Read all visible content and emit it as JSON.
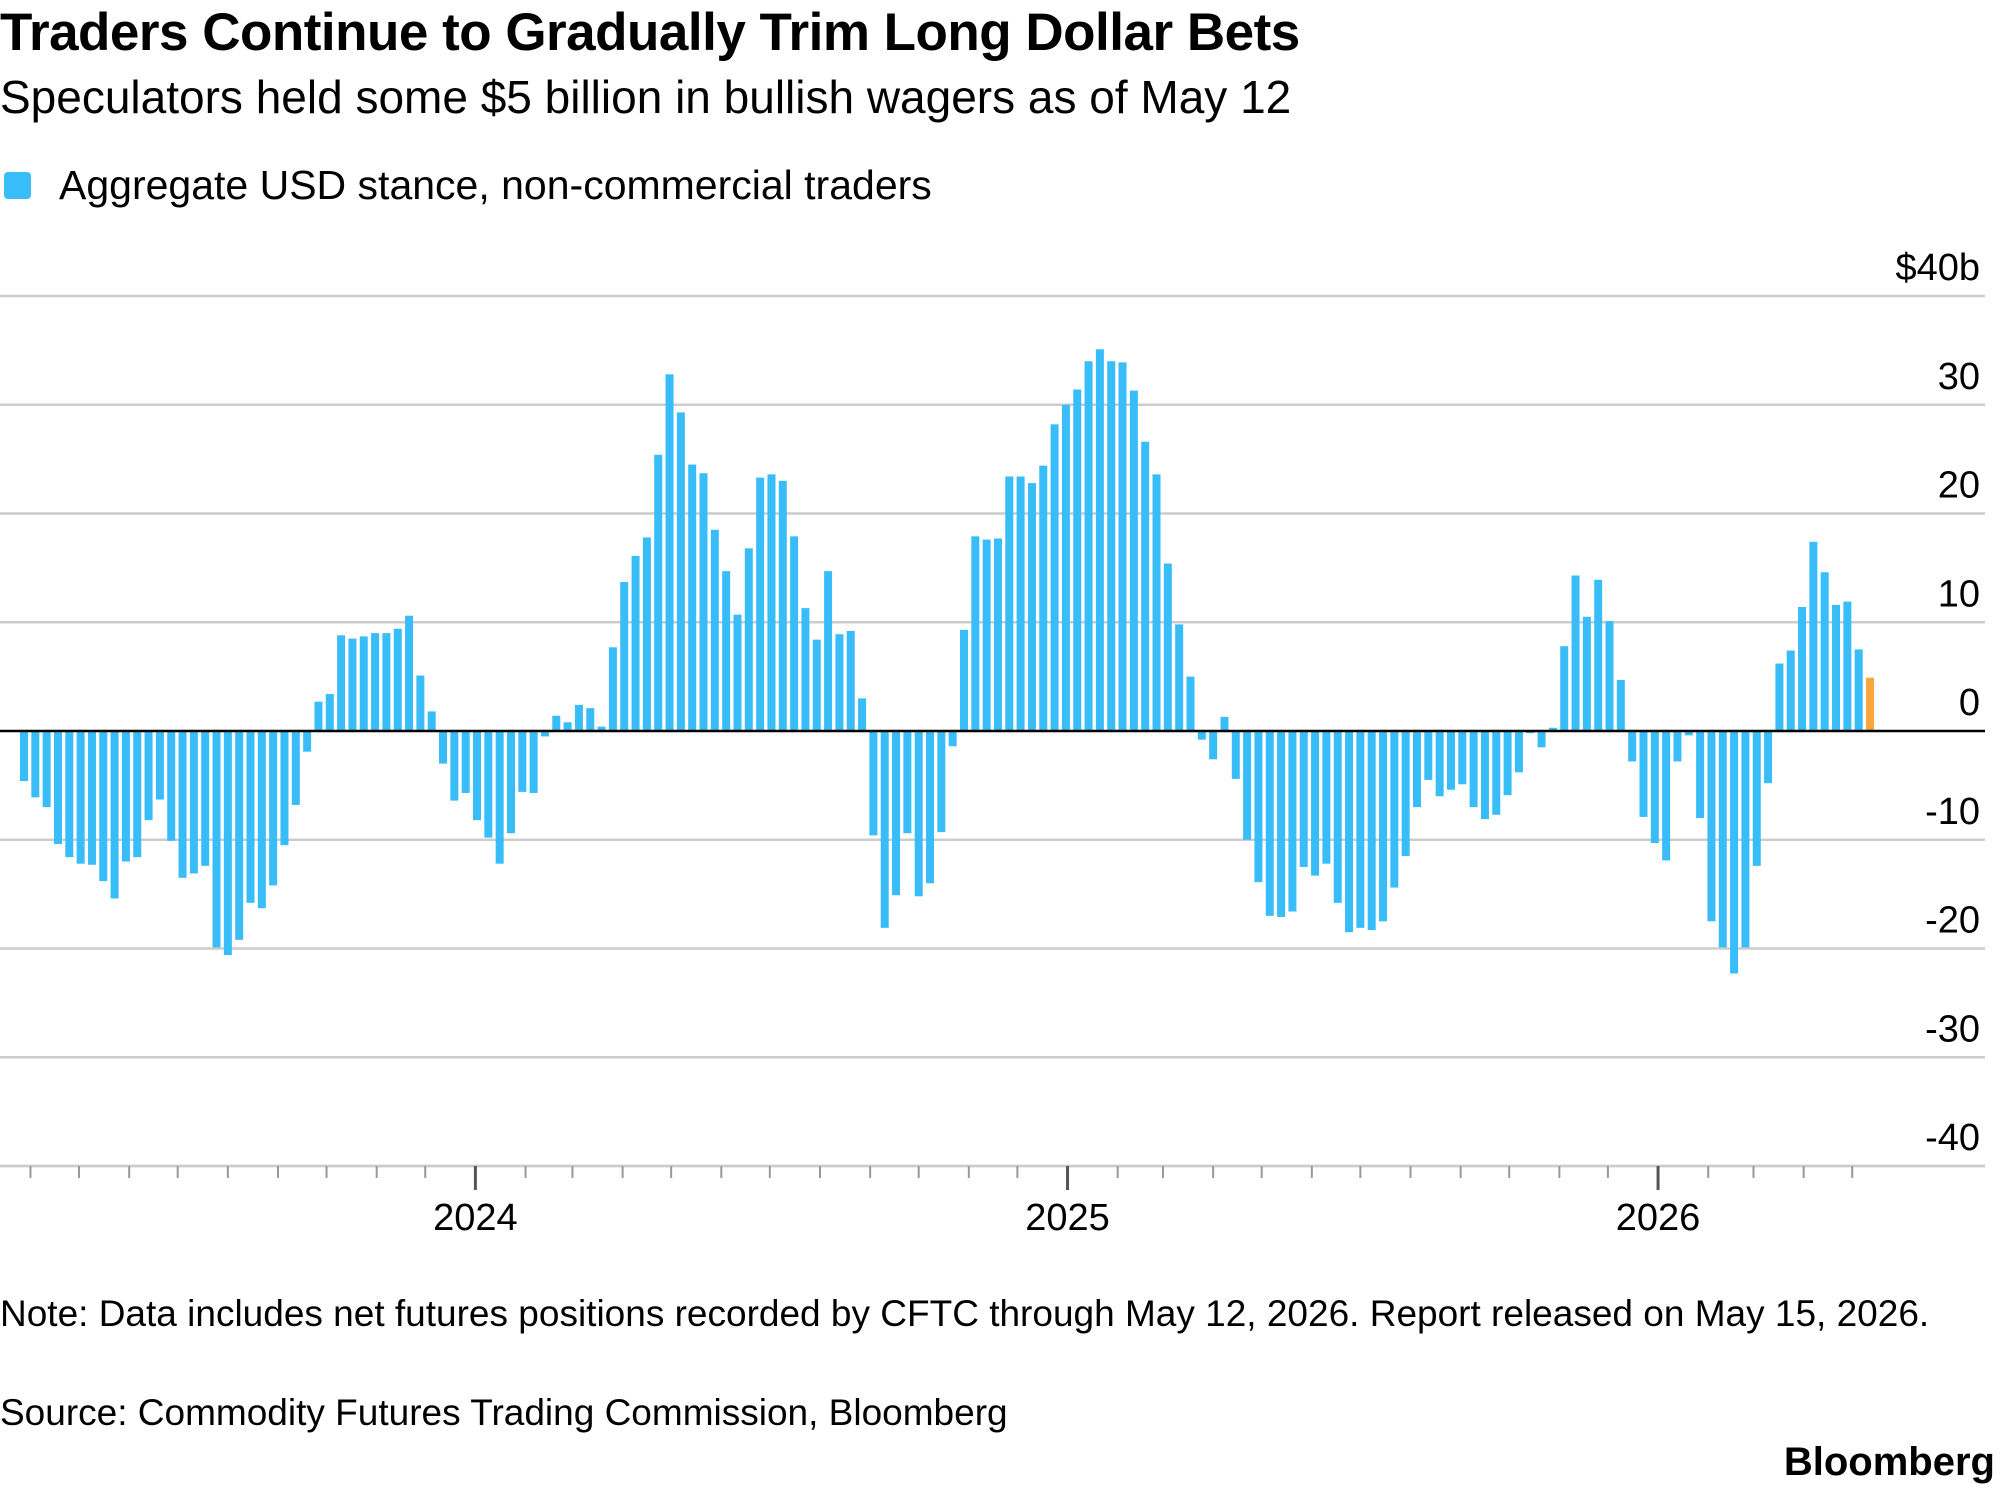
{
  "title": "Traders Continue to Gradually Trim Long Dollar Bets",
  "subtitle": "Speculators held some $5 billion in bullish wagers as of May 12",
  "note": "Note: Data includes net futures positions recorded by CFTC through May 12, 2026. Report released on May 15, 2026.",
  "source": "Source: Commodity Futures Trading Commission, Bloomberg",
  "brand": "Bloomberg",
  "colors": {
    "bar": "#38bdf8",
    "highlight": "#fba63c",
    "grid": "#cccccc",
    "axis": "#000000",
    "text": "#000000"
  },
  "chart_data": {
    "type": "bar",
    "legend": [
      "Aggregate USD stance, non-commercial traders"
    ],
    "legend_position": "top-left",
    "grid": true,
    "ylim": [
      -40,
      40
    ],
    "yticks": [
      {
        "value": 40,
        "label": "$40b"
      },
      {
        "value": 30,
        "label": "30"
      },
      {
        "value": 20,
        "label": "20"
      },
      {
        "value": 10,
        "label": "10"
      },
      {
        "value": 0,
        "label": "0"
      },
      {
        "value": -10,
        "label": "-10"
      },
      {
        "value": -20,
        "label": "-20"
      },
      {
        "value": -30,
        "label": "-30"
      },
      {
        "value": -40,
        "label": "-40"
      }
    ],
    "xticks": [
      {
        "date": "2024-01-01",
        "label": "2024"
      },
      {
        "date": "2025-01-01",
        "label": "2025"
      },
      {
        "date": "2026-01-01",
        "label": "2026"
      }
    ],
    "start_date": "2023-03-28",
    "interval_days": 7,
    "highlight_last": true,
    "series": [
      {
        "name": "Aggregate USD stance, non-commercial traders",
        "values": [
          -4.6,
          -6.1,
          -7.0,
          -10.4,
          -11.6,
          -12.2,
          -12.3,
          -13.8,
          -15.4,
          -12.0,
          -11.6,
          -8.2,
          -6.3,
          -10.1,
          -13.5,
          -13.1,
          -12.4,
          -19.9,
          -20.6,
          -19.2,
          -15.8,
          -16.3,
          -14.2,
          -10.5,
          -6.8,
          -1.9,
          2.7,
          3.4,
          8.8,
          8.5,
          8.7,
          9.0,
          9.0,
          9.4,
          10.6,
          5.1,
          1.8,
          -3.0,
          -6.4,
          -5.7,
          -8.2,
          -9.8,
          -12.2,
          -9.4,
          -5.6,
          -5.7,
          -0.5,
          1.4,
          0.8,
          2.4,
          2.1,
          0.4,
          7.7,
          13.7,
          16.1,
          17.8,
          25.4,
          32.8,
          29.3,
          24.5,
          23.7,
          18.5,
          14.7,
          10.7,
          16.8,
          23.3,
          23.6,
          23.0,
          17.9,
          11.3,
          8.4,
          14.7,
          8.9,
          9.2,
          3.0,
          -9.6,
          -18.1,
          -15.1,
          -9.4,
          -15.2,
          -14.0,
          -9.3,
          -1.4,
          9.3,
          17.9,
          17.6,
          17.7,
          23.4,
          23.4,
          22.8,
          24.4,
          28.2,
          30.0,
          31.4,
          34.0,
          35.1,
          34.0,
          33.9,
          31.3,
          26.6,
          23.6,
          15.4,
          9.8,
          5.0,
          -0.8,
          -2.6,
          1.3,
          -4.4,
          -10.0,
          -13.9,
          -17.0,
          -17.1,
          -16.6,
          -12.5,
          -13.3,
          -12.2,
          -15.8,
          -18.5,
          -18.1,
          -18.3,
          -17.5,
          -14.4,
          -11.5,
          -7.0,
          -4.5,
          -6.0,
          -5.4,
          -4.9,
          -7.0,
          -8.1,
          -7.7,
          -5.9,
          -3.8,
          -0.2,
          -1.5,
          0.3,
          7.8,
          14.3,
          10.5,
          13.9,
          10.1,
          4.7,
          -2.8,
          -7.9,
          -10.3,
          -11.9,
          -2.8,
          -0.4,
          -8.0,
          -17.5,
          -19.9,
          -22.3,
          -19.9,
          -12.4,
          -4.8,
          6.2,
          7.4,
          11.4,
          17.4,
          14.6,
          11.6,
          11.9,
          7.5,
          4.9
        ]
      }
    ]
  }
}
